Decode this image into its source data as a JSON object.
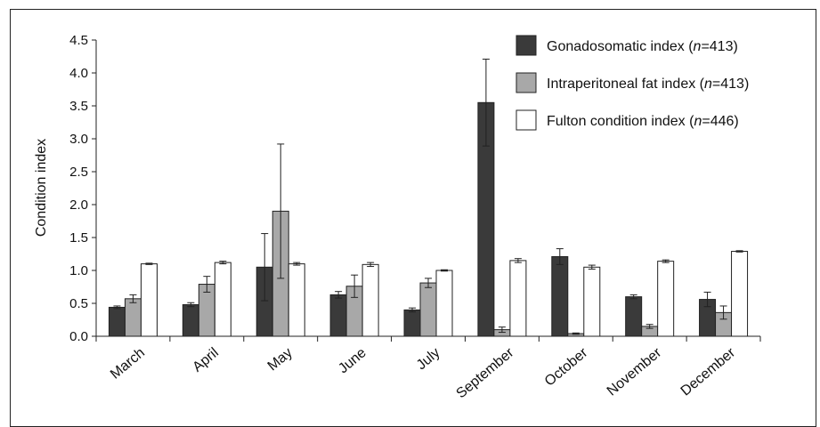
{
  "chart_data": {
    "type": "bar",
    "ylabel": "Condition index",
    "xlabel": "",
    "ylim": [
      0,
      4.5
    ],
    "yticks": [
      "0.0",
      "0.5",
      "1.0",
      "1.5",
      "2.0",
      "2.5",
      "3.0",
      "3.5",
      "4.0",
      "4.5"
    ],
    "categories": [
      "March",
      "April",
      "May",
      "June",
      "July",
      "September",
      "October",
      "November",
      "December"
    ],
    "legend_position": "top-right",
    "series": [
      {
        "name_main": "Gonadosomatic index (",
        "name_italic": "n",
        "name_tail": "=413)",
        "color": "#3a3a3a",
        "values": [
          0.44,
          0.48,
          1.05,
          0.63,
          0.4,
          3.55,
          1.21,
          0.6,
          0.56
        ],
        "errors": [
          0.02,
          0.03,
          0.51,
          0.05,
          0.03,
          0.66,
          0.12,
          0.03,
          0.11
        ]
      },
      {
        "name_main": "Intraperitoneal fat index (",
        "name_italic": "n",
        "name_tail": "=413)",
        "color": "#a8a8a8",
        "values": [
          0.57,
          0.79,
          1.9,
          0.76,
          0.81,
          0.1,
          0.04,
          0.15,
          0.36
        ],
        "errors": [
          0.06,
          0.12,
          1.02,
          0.17,
          0.07,
          0.04,
          0.01,
          0.03,
          0.1
        ]
      },
      {
        "name_main": "Fulton condition index (",
        "name_italic": "n",
        "name_tail": "=446)",
        "color": "#ffffff",
        "values": [
          1.1,
          1.12,
          1.1,
          1.09,
          1.0,
          1.15,
          1.05,
          1.14,
          1.29
        ],
        "errors": [
          0.01,
          0.02,
          0.02,
          0.03,
          0.01,
          0.03,
          0.03,
          0.02,
          0.01
        ]
      }
    ]
  }
}
